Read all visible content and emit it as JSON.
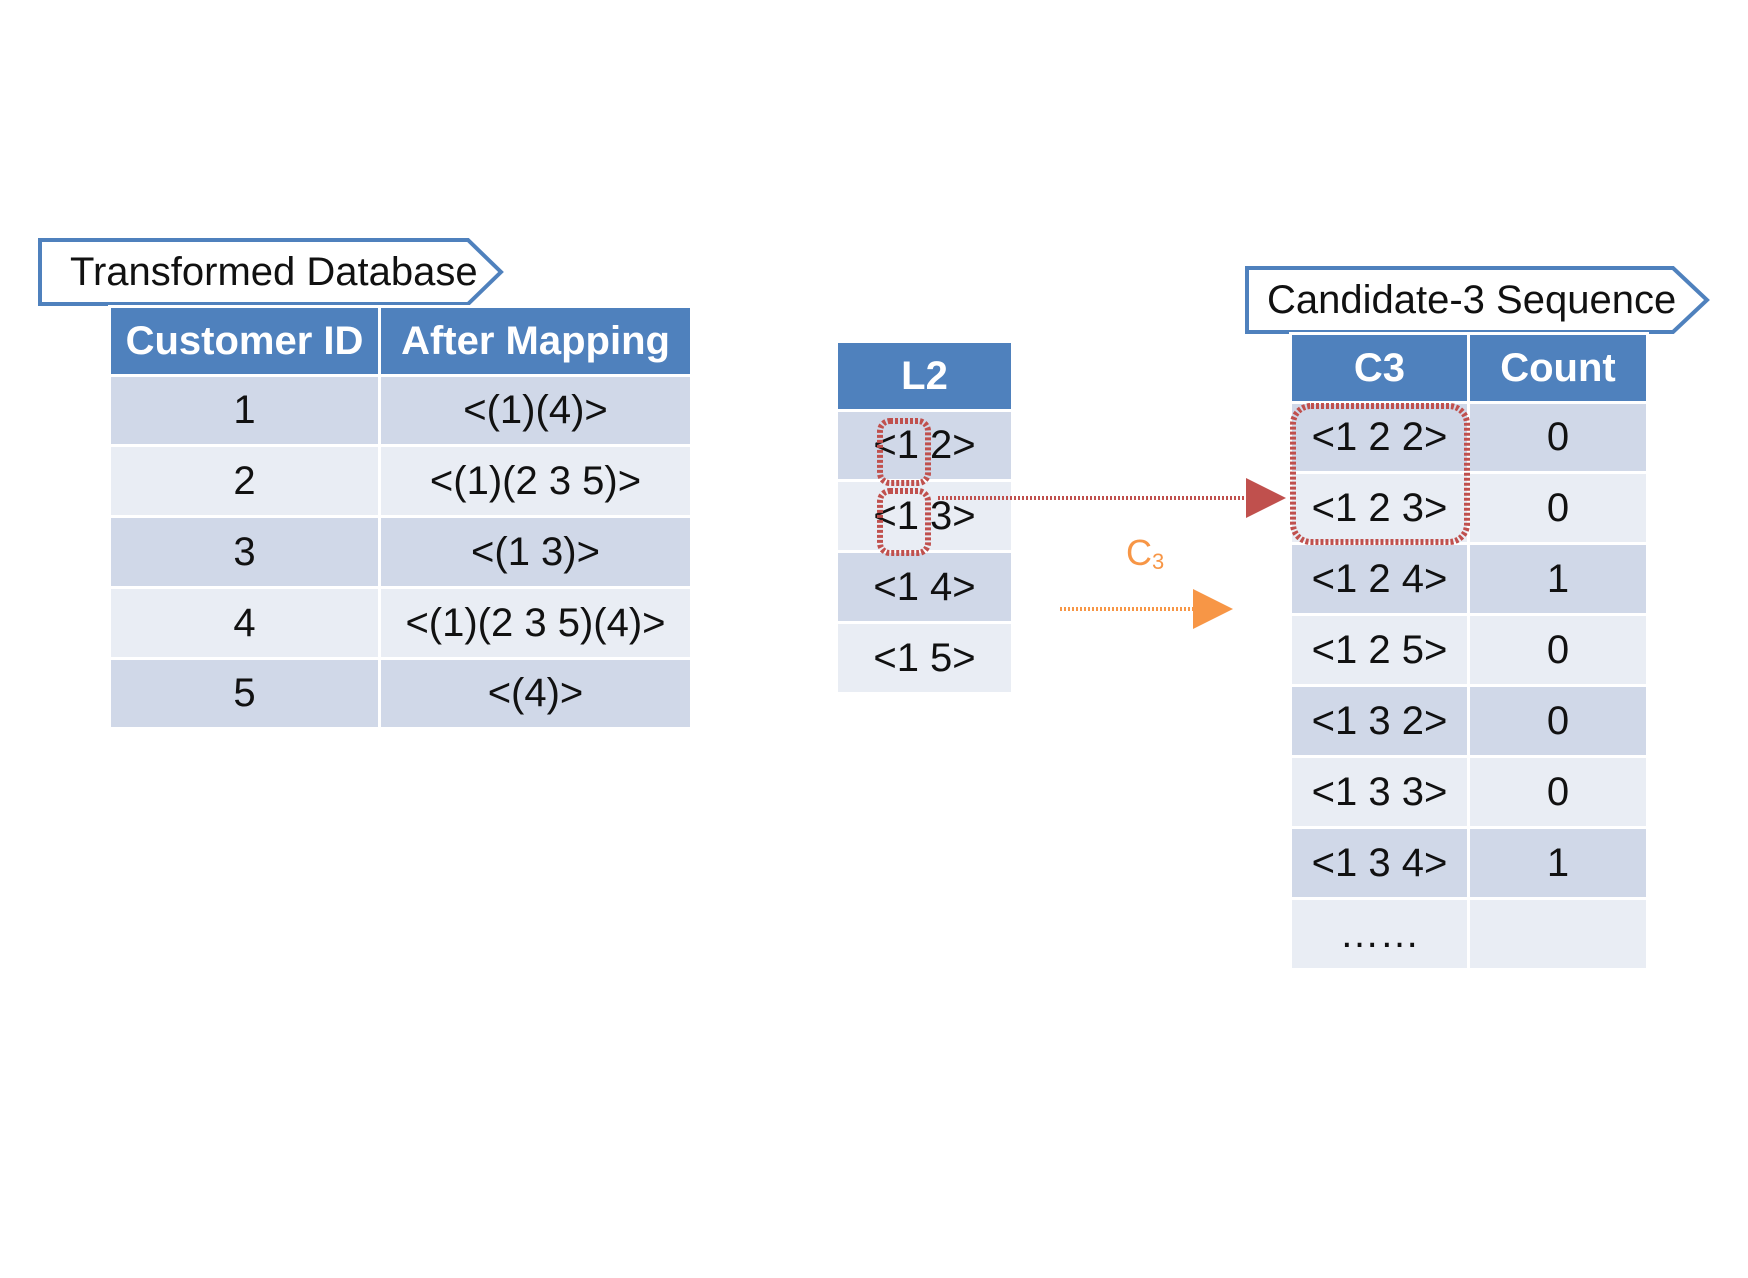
{
  "transformed_db": {
    "tag": "Transformed Database",
    "headers": [
      "Customer ID",
      "After Mapping"
    ],
    "rows": [
      [
        "1",
        "<(1)(4)>"
      ],
      [
        "2",
        "<(1)(2 3 5)>"
      ],
      [
        "3",
        "<(1 3)>"
      ],
      [
        "4",
        "<(1)(2 3 5)(4)>"
      ],
      [
        "5",
        "<(4)>"
      ]
    ]
  },
  "l2": {
    "header": "L2",
    "rows": [
      "<1 2>",
      "<1 3>",
      "<1 4>",
      "<1 5>"
    ]
  },
  "c3": {
    "tag": "Candidate-3 Sequence",
    "headers": [
      "C3",
      "Count"
    ],
    "rows": [
      [
        "<1 2 2>",
        "0"
      ],
      [
        "<1 2 3>",
        "0"
      ],
      [
        "<1 2 4>",
        "1"
      ],
      [
        "<1 2 5>",
        "0"
      ],
      [
        "<1 3 2>",
        "0"
      ],
      [
        "<1 3 3>",
        "0"
      ],
      [
        "<1 3 4>",
        "1"
      ],
      [
        "……",
        ""
      ]
    ]
  },
  "arrow_label": {
    "main": "C",
    "sub": "3"
  },
  "colors": {
    "header": "#4f81bd",
    "row_dark": "#d0d8e8",
    "row_light": "#e9edf4",
    "highlight": "#c0504d",
    "arrow_orange": "#f79646"
  }
}
